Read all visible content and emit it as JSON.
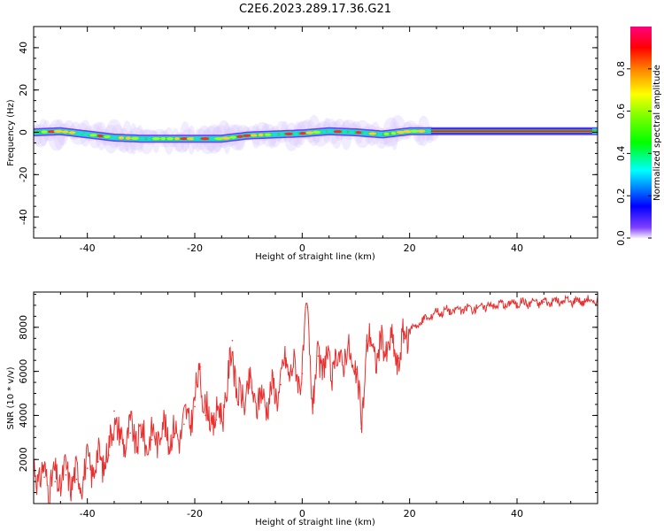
{
  "title": "C2E6.2023.289.17.36.G21",
  "chart_data": [
    {
      "type": "heatmap",
      "xlabel": "Height of straight line (km)",
      "ylabel": "Frequency (Hz)",
      "xlim": [
        -50,
        55
      ],
      "ylim": [
        -50,
        50
      ],
      "xticks": [
        -40,
        -20,
        0,
        20,
        40
      ],
      "yticks": [
        -40,
        -20,
        0,
        20,
        40
      ],
      "colorbar": {
        "label": "Normalized spectral amplitude",
        "range": [
          0.0,
          1.0
        ],
        "ticks": [
          "0.0",
          "0.2",
          "0.4",
          "0.6",
          "0.8"
        ]
      },
      "ridge": {
        "x": [
          -50,
          -45,
          -40,
          -35,
          -30,
          -25,
          -20,
          -15,
          -10,
          -5,
          0,
          5,
          10,
          15,
          20,
          25,
          30,
          40,
          55
        ],
        "frequency": [
          0,
          0.5,
          -1,
          -2.5,
          -3,
          -3,
          -3,
          -3,
          -1.5,
          -1,
          -0.5,
          0.5,
          0,
          -1,
          0.5,
          0.5,
          0.5,
          0.5,
          0.5
        ]
      }
    },
    {
      "type": "line",
      "xlabel": "Height of straight line (km)",
      "ylabel": "SNR (10 * v/v)",
      "xlim": [
        -50,
        55
      ],
      "ylim": [
        0,
        9600
      ],
      "xticks": [
        -40,
        -20,
        0,
        20,
        40
      ],
      "yticks": [
        2000,
        4000,
        6000,
        8000
      ],
      "color": "#e8302f",
      "series": [
        {
          "x": [
            -50,
            -48,
            -46,
            -44,
            -42,
            -40,
            -38,
            -36,
            -35,
            -34,
            -32,
            -30,
            -28,
            -26,
            -24,
            -22,
            -20,
            -19,
            -18,
            -16,
            -14,
            -13,
            -12,
            -10,
            -8,
            -6,
            -4,
            -3,
            -2,
            0,
            1,
            2,
            3,
            4,
            6,
            8,
            10,
            11,
            12,
            14,
            16,
            18,
            19,
            20,
            22,
            25,
            30,
            35,
            40,
            45,
            50,
            55
          ],
          "y": [
            1500,
            1200,
            1000,
            1300,
            1100,
            1600,
            1900,
            2200,
            4200,
            2800,
            3200,
            3000,
            2900,
            3400,
            3000,
            3600,
            4400,
            6200,
            4000,
            3800,
            4800,
            7400,
            4500,
            5200,
            4600,
            4900,
            5400,
            6600,
            6000,
            5900,
            8900,
            4400,
            6700,
            6300,
            6200,
            6900,
            6100,
            3400,
            7400,
            6800,
            7300,
            6600,
            7500,
            7900,
            8200,
            8700,
            8800,
            9000,
            9100,
            9150,
            9200,
            9200
          ]
        }
      ]
    }
  ]
}
